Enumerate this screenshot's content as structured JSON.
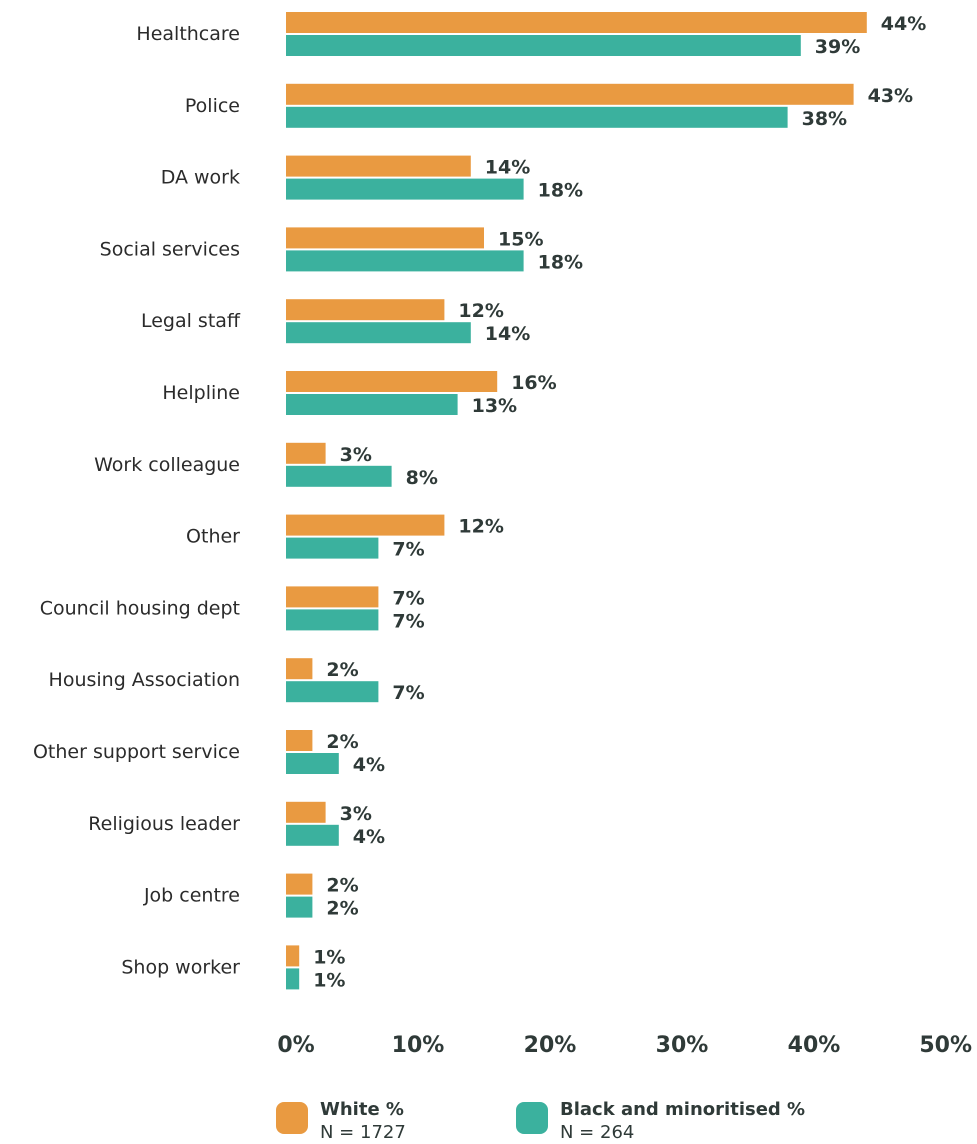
{
  "chart_data": {
    "type": "bar",
    "orientation": "horizontal",
    "categories": [
      "Healthcare",
      "Police",
      "DA work",
      "Social services",
      "Legal staff",
      "Helpline",
      "Work colleague",
      "Other",
      "Council housing dept",
      "Housing Association",
      "Other support service",
      "Religious leader",
      "Job centre",
      "Shop worker"
    ],
    "series": [
      {
        "name": "White %",
        "n_label": "N = 1727",
        "color": "#E99A41",
        "values": [
          44,
          43,
          14,
          15,
          12,
          16,
          3,
          12,
          7,
          2,
          2,
          3,
          2,
          1
        ],
        "labels": [
          "44%",
          "43%",
          "14%",
          "15%",
          "12%",
          "16%",
          "3%",
          "12%",
          "7%",
          "2%",
          "2%",
          "3%",
          "2%",
          "1%"
        ]
      },
      {
        "name": "Black and minoritised %",
        "n_label": "N = 264",
        "color": "#3BB19E",
        "values": [
          39,
          38,
          18,
          18,
          14,
          13,
          8,
          7,
          7,
          7,
          4,
          4,
          2,
          1
        ],
        "labels": [
          "39%",
          "38%",
          "18%",
          "18%",
          "14%",
          "13%",
          "8%",
          "7%",
          "7%",
          "7%",
          "4%",
          "4%",
          "2%",
          "1%"
        ]
      }
    ],
    "xlim": [
      0,
      50
    ],
    "xticks": [
      "0%",
      "10%",
      "20%",
      "30%",
      "40%",
      "50%"
    ],
    "title": "",
    "xlabel": "",
    "ylabel": "",
    "grid": false,
    "legend_position": "bottom"
  }
}
